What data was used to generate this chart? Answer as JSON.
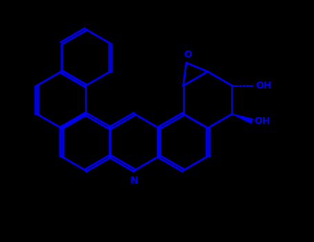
{
  "background_color": "#000000",
  "bond_color": "#0000EE",
  "text_color": "#0000EE",
  "line_width": 2.0,
  "figsize": [
    4.55,
    3.5
  ],
  "dpi": 100,
  "xlim": [
    -0.5,
    10.5
  ],
  "ylim": [
    -0.5,
    8.0
  ]
}
